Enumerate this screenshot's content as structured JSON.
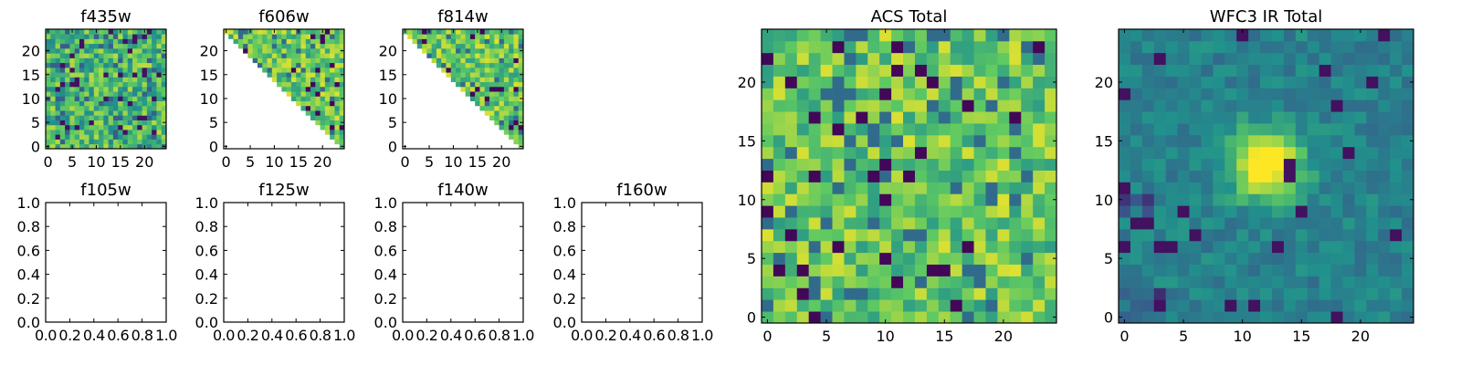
{
  "colormap": [
    "#440154",
    "#3b528b",
    "#21918c",
    "#5ec962",
    "#fde725"
  ],
  "chart_data": [
    {
      "type": "heatmap",
      "title": "f435w",
      "mask": "none",
      "grid_size": 25,
      "xlim": [
        -0.5,
        24.5
      ],
      "ylim": [
        -0.5,
        24.5
      ],
      "xticks": [
        0,
        5,
        10,
        15,
        20
      ],
      "yticks": [
        0,
        5,
        10,
        15,
        20
      ],
      "value_range": [
        0,
        1
      ],
      "texture": "uniform-noise"
    },
    {
      "type": "heatmap",
      "title": "f606w",
      "mask": "upper-triangle",
      "grid_size": 25,
      "xlim": [
        -0.5,
        24.5
      ],
      "ylim": [
        -0.5,
        24.5
      ],
      "xticks": [
        0,
        5,
        10,
        15,
        20
      ],
      "yticks": [
        0,
        5,
        10,
        15,
        20
      ],
      "value_range": [
        0,
        1
      ],
      "texture": "bright-noise"
    },
    {
      "type": "heatmap",
      "title": "f814w",
      "mask": "upper-triangle",
      "grid_size": 25,
      "xlim": [
        -0.5,
        24.5
      ],
      "ylim": [
        -0.5,
        24.5
      ],
      "xticks": [
        0,
        5,
        10,
        15,
        20
      ],
      "yticks": [
        0,
        5,
        10,
        15,
        20
      ],
      "value_range": [
        0,
        1
      ],
      "texture": "bright-noise"
    },
    {
      "type": "empty",
      "title": "f105w",
      "xlim": [
        0,
        1
      ],
      "ylim": [
        0,
        1
      ],
      "xticks": [
        "0.0",
        "0.2",
        "0.4",
        "0.6",
        "0.8",
        "1.0"
      ],
      "yticks": [
        "0.0",
        "0.2",
        "0.4",
        "0.6",
        "0.8",
        "1.0"
      ]
    },
    {
      "type": "empty",
      "title": "f125w",
      "xlim": [
        0,
        1
      ],
      "ylim": [
        0,
        1
      ],
      "xticks": [
        "0.0",
        "0.2",
        "0.4",
        "0.6",
        "0.8",
        "1.0"
      ],
      "yticks": [
        "0.0",
        "0.2",
        "0.4",
        "0.6",
        "0.8",
        "1.0"
      ]
    },
    {
      "type": "empty",
      "title": "f140w",
      "xlim": [
        0,
        1
      ],
      "ylim": [
        0,
        1
      ],
      "xticks": [
        "0.0",
        "0.2",
        "0.4",
        "0.6",
        "0.8",
        "1.0"
      ],
      "yticks": [
        "0.0",
        "0.2",
        "0.4",
        "0.6",
        "0.8",
        "1.0"
      ]
    },
    {
      "type": "empty",
      "title": "f160w",
      "xlim": [
        0,
        1
      ],
      "ylim": [
        0,
        1
      ],
      "xticks": [
        "0.0",
        "0.2",
        "0.4",
        "0.6",
        "0.8",
        "1.0"
      ],
      "yticks": [
        "0.0",
        "0.2",
        "0.4",
        "0.6",
        "0.8",
        "1.0"
      ]
    },
    {
      "type": "heatmap",
      "title": "ACS Total",
      "mask": "none",
      "grid_size": 25,
      "xlim": [
        -0.5,
        24.5
      ],
      "ylim": [
        -0.5,
        24.5
      ],
      "xticks": [
        0,
        5,
        10,
        15,
        20
      ],
      "yticks": [
        0,
        5,
        10,
        15,
        20
      ],
      "value_range": [
        0,
        1
      ],
      "texture": "bright-noise"
    },
    {
      "type": "heatmap",
      "title": "WFC3 IR Total",
      "mask": "none",
      "grid_size": 25,
      "xlim": [
        -0.5,
        24.5
      ],
      "ylim": [
        -0.5,
        24.5
      ],
      "xticks": [
        0,
        5,
        10,
        15,
        20
      ],
      "yticks": [
        0,
        5,
        10,
        15,
        20
      ],
      "value_range": [
        0,
        1
      ],
      "texture": "gaussian-source",
      "source_center": [
        12,
        13
      ],
      "source_sigma": 2.0
    }
  ]
}
